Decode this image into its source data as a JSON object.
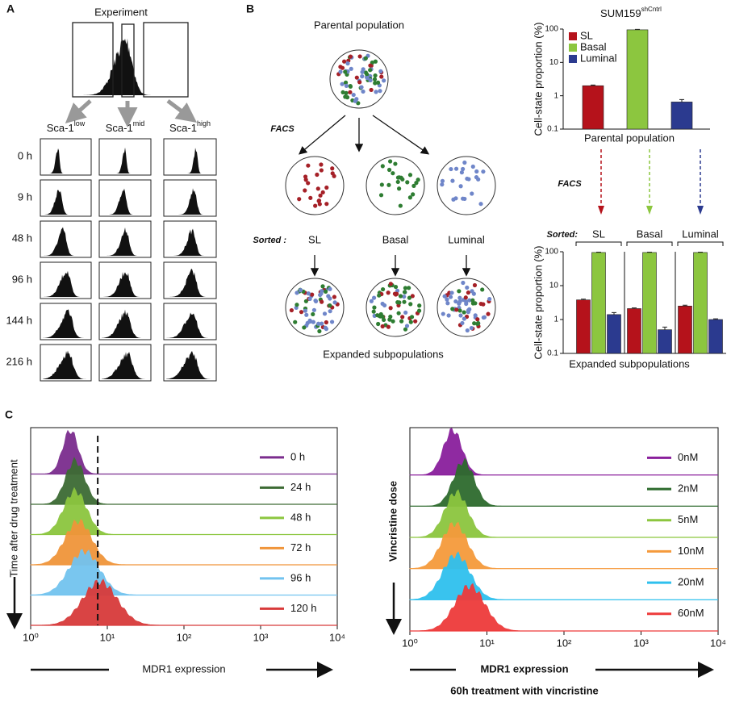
{
  "panel_a": {
    "label": "A",
    "title": "Experiment",
    "columns": [
      {
        "name": "Sca-1",
        "sup": "low"
      },
      {
        "name": "Sca-1",
        "sup": "mid"
      },
      {
        "name": "Sca-1",
        "sup": "high"
      }
    ],
    "rows": [
      "0 h",
      "9 h",
      "48 h",
      "96 h",
      "144 h",
      "216 h"
    ]
  },
  "panel_b": {
    "label": "B",
    "top_title": "Parental population",
    "facs": "FACS",
    "sorted_label": "Sorted :",
    "sorted": [
      "SL",
      "Basal",
      "Luminal"
    ],
    "bottom_title": "Expanded subpopulations",
    "sorted_label_right": "Sorted:"
  },
  "chart_data": [
    {
      "type": "bar",
      "title": "SUM159",
      "title_sup": "shCntrl",
      "ylabel": "Cell-state proportion (%)",
      "categories": [
        "Parental population"
      ],
      "log": true,
      "ylim": [
        0.1,
        100
      ],
      "yticks": [
        0.1,
        1,
        10,
        100
      ],
      "legend": "upper left",
      "series": [
        {
          "name": "SL",
          "color": "#b5121b",
          "values": [
            2
          ],
          "errors": [
            0.1
          ]
        },
        {
          "name": "Basal",
          "color": "#8cc63f",
          "values": [
            95
          ],
          "errors": [
            3
          ]
        },
        {
          "name": "Luminal",
          "color": "#2b3a8f",
          "values": [
            0.65
          ],
          "errors": [
            0.12
          ]
        }
      ]
    },
    {
      "type": "bar",
      "ylabel": "Cell-state proportion (%)",
      "xlabel": "Expanded subpopulations",
      "categories": [
        "SL",
        "Basal",
        "Luminal"
      ],
      "log": true,
      "ylim": [
        0.1,
        100
      ],
      "yticks": [
        0.1,
        1,
        10,
        100
      ],
      "series": [
        {
          "color": "#b5121b",
          "values": [
            3.8,
            2.1,
            2.5
          ],
          "errors": [
            0.2,
            0.1,
            0.15
          ]
        },
        {
          "color": "#8cc63f",
          "values": [
            95,
            95,
            95
          ],
          "errors": [
            2,
            2,
            2
          ]
        },
        {
          "color": "#2b3a8f",
          "values": [
            1.4,
            0.5,
            1.0
          ],
          "errors": [
            0.2,
            0.1,
            0.05
          ]
        }
      ]
    }
  ],
  "panel_c": {
    "label": "C",
    "left": {
      "type": "ridge",
      "ylabel": "Time after drug treatment",
      "xlabel": "MDR1 expression",
      "log": true,
      "xlim": [
        1,
        10000
      ],
      "xticks": [
        {
          "value": 1,
          "label": "10⁰"
        },
        {
          "value": 10,
          "label": "10¹"
        },
        {
          "value": 100,
          "label": "10²"
        },
        {
          "value": 1000,
          "label": "10³"
        },
        {
          "value": 10000,
          "label": "10⁴"
        }
      ],
      "threshold": 7.5,
      "series": [
        {
          "name": "0 h",
          "color": "#7b2d8e",
          "peak": 3.3
        },
        {
          "name": "24 h",
          "color": "#3d6b34",
          "peak": 3.8
        },
        {
          "name": "48 h",
          "color": "#8cc63f",
          "peak": 3.8
        },
        {
          "name": "72 h",
          "color": "#f0953a",
          "peak": 4.2
        },
        {
          "name": "96 h",
          "color": "#72c3ef",
          "peak": 5
        },
        {
          "name": "120 h",
          "color": "#d83a3a",
          "peak": 8
        }
      ]
    },
    "right": {
      "type": "ridge",
      "ylabel": "Vincristine dose",
      "xlabel": "MDR1 expression",
      "subtitle": "60h treatment with vincristine",
      "log": true,
      "xlim": [
        1,
        10000
      ],
      "xticks": [
        {
          "value": 1,
          "label": "10⁰"
        },
        {
          "value": 10,
          "label": "10¹"
        },
        {
          "value": 100,
          "label": "10²"
        },
        {
          "value": 1000,
          "label": "10³"
        },
        {
          "value": 10000,
          "label": "10⁴"
        }
      ],
      "series": [
        {
          "name": "0nM",
          "color": "#8a1f9c",
          "peak": 3.6
        },
        {
          "name": "2nM",
          "color": "#2e6b2e",
          "peak": 5
        },
        {
          "name": "5nM",
          "color": "#8cc63f",
          "peak": 4
        },
        {
          "name": "10nM",
          "color": "#f59a3c",
          "peak": 3.8
        },
        {
          "name": "20nM",
          "color": "#2fc0ee",
          "peak": 4
        },
        {
          "name": "60nM",
          "color": "#ee3b3b",
          "peak": 6
        }
      ]
    }
  }
}
